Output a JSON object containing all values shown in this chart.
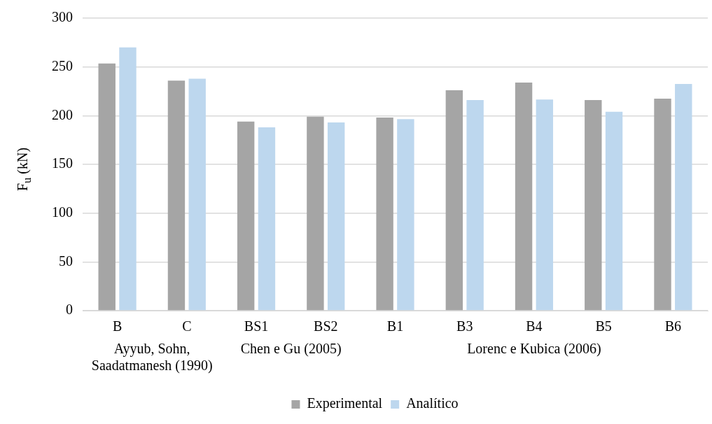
{
  "chart_data": {
    "type": "bar",
    "ylabel": "F$_{u}$ (kN)",
    "categories": [
      "B",
      "C",
      "BS1",
      "BS2",
      "B1",
      "B3",
      "B4",
      "B5",
      "B6"
    ],
    "series": [
      {
        "name": "Experimental",
        "color": "#a5a5a5",
        "values": [
          253.5,
          236,
          194,
          199,
          198,
          226,
          234,
          216,
          217.5
        ]
      },
      {
        "name": "Analítico",
        "color": "#bdd7ee",
        "values": [
          270,
          238,
          188,
          193,
          196.5,
          216,
          216.5,
          204,
          232.5
        ]
      }
    ],
    "annotations": [
      "Ayyub, Sohn, Saadatmanesh (1990)",
      "Chen e Gu (2005)",
      "Lorenc e Kubica (2006)"
    ],
    "ylim": [
      0,
      300
    ],
    "yticks": [
      0,
      50,
      100,
      150,
      200,
      250,
      300
    ],
    "grid": "y",
    "legend": "bottom"
  }
}
